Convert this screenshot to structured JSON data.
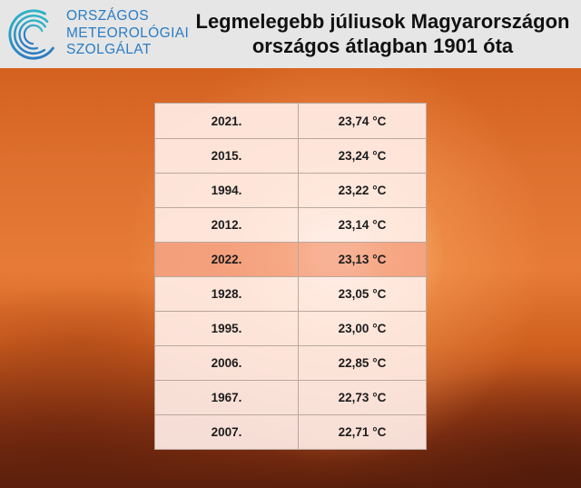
{
  "header": {
    "logo": {
      "icon": "omsz-swirl-icon",
      "lines": [
        "ORSZÁGOS",
        "METEOROLÓGIAI",
        "SZOLGÁLAT"
      ],
      "color": "#2b7dc4",
      "icon_colors": [
        "#2fc0c8",
        "#2a6fc0"
      ]
    },
    "background": "#e6e6e6"
  },
  "chart_data": {
    "type": "table",
    "title": "Legmelegebb júliusok Magyarországon",
    "subtitle": "országos átlagban 1901 óta",
    "rows": [
      {
        "year": "2021.",
        "value": "23,74 °C"
      },
      {
        "year": "2015.",
        "value": "23,24 °C"
      },
      {
        "year": "1994.",
        "value": "23,22 °C"
      },
      {
        "year": "2012.",
        "value": "23,14 °C"
      },
      {
        "year": "2022.",
        "value": "23,13 °C"
      },
      {
        "year": "1928.",
        "value": "23,05 °C"
      },
      {
        "year": "1995.",
        "value": "23,00 °C"
      },
      {
        "year": "2006.",
        "value": "22,85 °C"
      },
      {
        "year": "1967.",
        "value": "22,73 °C"
      },
      {
        "year": "2007.",
        "value": "22,71 °C"
      }
    ],
    "highlighted_row": 4,
    "colors": {
      "row": "#ffece5ed",
      "highlight": "#f6a587d9"
    }
  }
}
